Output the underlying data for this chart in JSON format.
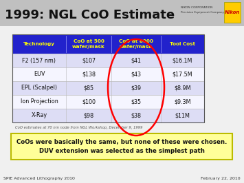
{
  "title": "1999: NGL CoO Estimate",
  "table_headers": [
    "Technology",
    "CoO at 500\nwafer/mask",
    "CoO at 8000\nwafer/mask",
    "Tool Cost"
  ],
  "table_rows": [
    [
      "F2 (157 nm)",
      "$107",
      "$41",
      "$16.1M"
    ],
    [
      "EUV",
      "$138",
      "$43",
      "$17.5M"
    ],
    [
      "EPL (Scalpel)",
      "$85",
      "$39",
      "$8.9M"
    ],
    [
      "Ion Projection",
      "$100",
      "$35",
      "$9.3M"
    ],
    [
      "X-Ray",
      "$98",
      "$38",
      "$11M"
    ]
  ],
  "header_bg": "#2222cc",
  "header_text_color": "#ffff00",
  "row_bg_odd": "#ddddf5",
  "row_bg_even": "#f5f5ff",
  "footer_text": "CoO estimates at 70 nm node from NGL Workshop, December 9, 1999",
  "callout_text": "CoOs were basically the same, but none of these were chosen.\nDUV extension was selected as the simplest path",
  "callout_bg": "#ffff99",
  "callout_border": "#bbbb00",
  "bottom_left": "SPIE Advanced Lithography 2010",
  "bottom_right": "February 22, 2010",
  "nikon_text1": "NIKON CORPORATION",
  "nikon_text2": "Precision Equipment Company",
  "nikon_logo_bg": "#ffcc00",
  "title_bar_color": "#c0c0c0",
  "slide_bg": "#f0f0f0"
}
